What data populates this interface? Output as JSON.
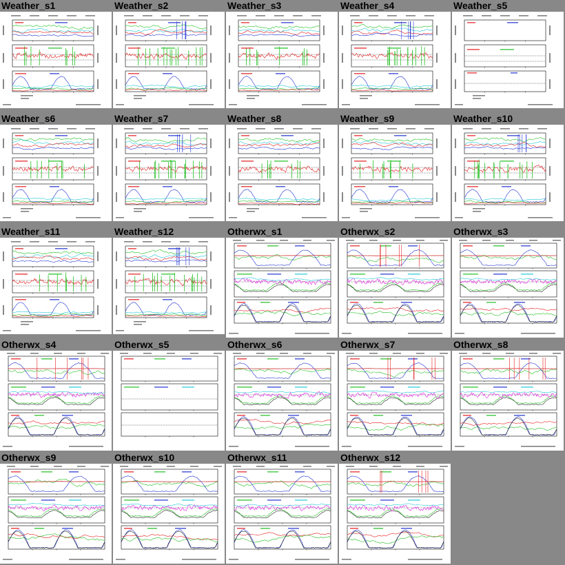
{
  "window": {
    "background": "#888888"
  },
  "tiles": [
    {
      "label": "Weather_s1",
      "kind": "weather",
      "style": "full"
    },
    {
      "label": "Weather_s2",
      "kind": "weather",
      "style": "spiky"
    },
    {
      "label": "Weather_s3",
      "kind": "weather",
      "style": "full"
    },
    {
      "label": "Weather_s4",
      "kind": "weather",
      "style": "spiky"
    },
    {
      "label": "Weather_s5",
      "kind": "weather",
      "style": "empty"
    },
    {
      "label": "Weather_s6",
      "kind": "weather",
      "style": "full"
    },
    {
      "label": "Weather_s7",
      "kind": "weather",
      "style": "spiky"
    },
    {
      "label": "Weather_s8",
      "kind": "weather",
      "style": "full"
    },
    {
      "label": "Weather_s9",
      "kind": "weather",
      "style": "full"
    },
    {
      "label": "Weather_s10",
      "kind": "weather",
      "style": "spiky"
    },
    {
      "label": "Weather_s11",
      "kind": "weather",
      "style": "full"
    },
    {
      "label": "Weather_s12",
      "kind": "weather",
      "style": "spiky"
    },
    {
      "label": "Otherwx_s1",
      "kind": "otherwx",
      "style": "full"
    },
    {
      "label": "Otherwx_s2",
      "kind": "otherwx",
      "style": "spiky"
    },
    {
      "label": "Otherwx_s3",
      "kind": "otherwx",
      "style": "full"
    },
    {
      "label": "Otherwx_s4",
      "kind": "otherwx",
      "style": "spiky"
    },
    {
      "label": "Otherwx_s5",
      "kind": "otherwx",
      "style": "empty"
    },
    {
      "label": "Otherwx_s6",
      "kind": "otherwx",
      "style": "full"
    },
    {
      "label": "Otherwx_s7",
      "kind": "otherwx",
      "style": "spiky"
    },
    {
      "label": "Otherwx_s8",
      "kind": "otherwx",
      "style": "spiky"
    },
    {
      "label": "Otherwx_s9",
      "kind": "otherwx",
      "style": "full"
    },
    {
      "label": "Otherwx_s10",
      "kind": "otherwx",
      "style": "full"
    },
    {
      "label": "Otherwx_s11",
      "kind": "otherwx",
      "style": "full"
    },
    {
      "label": "Otherwx_s12",
      "kind": "otherwx",
      "style": "spiky"
    }
  ],
  "colors": {
    "red": "#e41a1c",
    "green": "#1fbf1f",
    "blue": "#2030d0",
    "cyan": "#20c8d8",
    "magenta": "#e020e0",
    "black": "#222222",
    "axis": "#000000"
  }
}
